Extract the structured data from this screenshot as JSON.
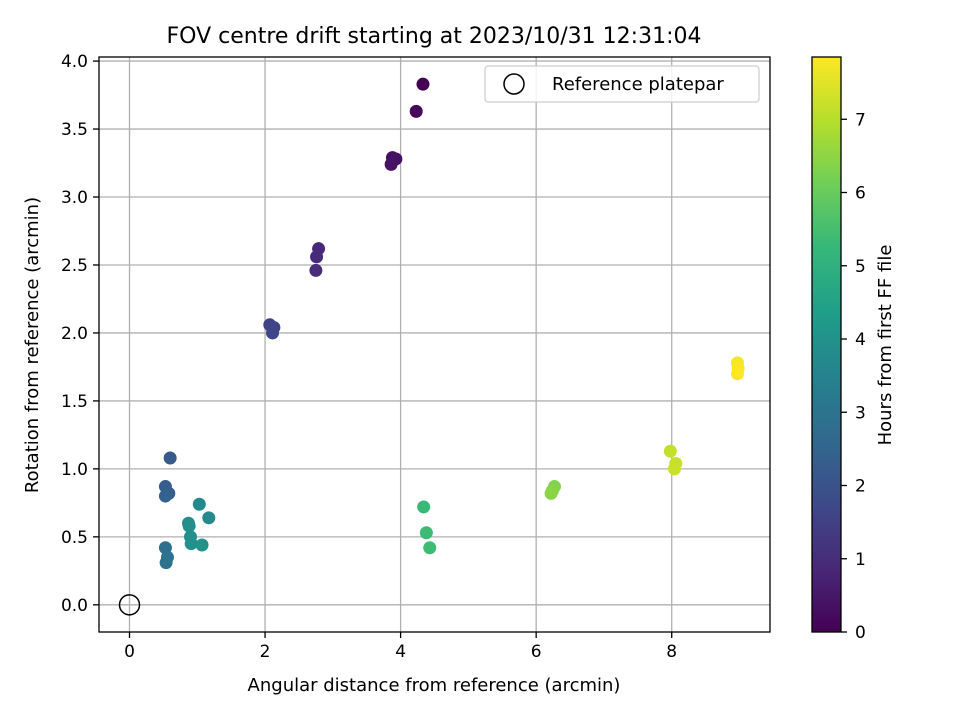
{
  "chart_data": {
    "type": "scatter",
    "title": "FOV centre drift starting at 2023/10/31 12:31:04",
    "xlabel": "Angular distance from reference (arcmin)",
    "ylabel": "Rotation from reference (arcmin)",
    "xlim": [
      -0.45,
      9.45
    ],
    "ylim": [
      -0.2,
      4.03
    ],
    "xticks": [
      0,
      2,
      4,
      6,
      8
    ],
    "yticks": [
      0.0,
      0.5,
      1.0,
      1.5,
      2.0,
      2.5,
      3.0,
      3.5,
      4.0
    ],
    "xtick_labels": [
      "0",
      "2",
      "4",
      "6",
      "8"
    ],
    "ytick_labels": [
      "0.0",
      "0.5",
      "1.0",
      "1.5",
      "2.0",
      "2.5",
      "3.0",
      "3.5",
      "4.0"
    ],
    "grid": true,
    "colormap": "viridis",
    "colorbar": {
      "label": "Hours from first FF file",
      "range": [
        0,
        7.85
      ],
      "ticks": [
        0,
        1,
        2,
        3,
        4,
        5,
        6,
        7
      ],
      "tick_labels": [
        "0",
        "1",
        "2",
        "3",
        "4",
        "5",
        "6",
        "7"
      ]
    },
    "legend": {
      "placement": "top-right",
      "entries": [
        "Reference platepar"
      ]
    },
    "reference_point": {
      "x": 0,
      "y": 0
    },
    "points": [
      {
        "x": 4.33,
        "y": 3.83,
        "c": 0.0
      },
      {
        "x": 4.23,
        "y": 3.63,
        "c": 0.15
      },
      {
        "x": 3.88,
        "y": 3.29,
        "c": 0.3
      },
      {
        "x": 3.93,
        "y": 3.28,
        "c": 0.35
      },
      {
        "x": 3.86,
        "y": 3.24,
        "c": 0.4
      },
      {
        "x": 2.79,
        "y": 2.62,
        "c": 0.9
      },
      {
        "x": 2.76,
        "y": 2.56,
        "c": 0.95
      },
      {
        "x": 2.75,
        "y": 2.46,
        "c": 1.0
      },
      {
        "x": 2.07,
        "y": 2.06,
        "c": 1.55
      },
      {
        "x": 2.13,
        "y": 2.04,
        "c": 1.6
      },
      {
        "x": 2.11,
        "y": 2.0,
        "c": 1.65
      },
      {
        "x": 0.6,
        "y": 1.08,
        "c": 2.2
      },
      {
        "x": 0.53,
        "y": 0.87,
        "c": 2.3
      },
      {
        "x": 0.58,
        "y": 0.82,
        "c": 2.35
      },
      {
        "x": 0.53,
        "y": 0.8,
        "c": 2.4
      },
      {
        "x": 0.53,
        "y": 0.42,
        "c": 2.85
      },
      {
        "x": 0.56,
        "y": 0.35,
        "c": 2.95
      },
      {
        "x": 0.54,
        "y": 0.31,
        "c": 3.0
      },
      {
        "x": 1.03,
        "y": 0.74,
        "c": 3.7
      },
      {
        "x": 1.17,
        "y": 0.64,
        "c": 3.75
      },
      {
        "x": 0.87,
        "y": 0.6,
        "c": 3.8
      },
      {
        "x": 0.88,
        "y": 0.58,
        "c": 3.85
      },
      {
        "x": 0.9,
        "y": 0.5,
        "c": 3.9
      },
      {
        "x": 0.91,
        "y": 0.45,
        "c": 3.95
      },
      {
        "x": 1.07,
        "y": 0.44,
        "c": 4.0
      },
      {
        "x": 4.34,
        "y": 0.72,
        "c": 5.3
      },
      {
        "x": 4.38,
        "y": 0.53,
        "c": 5.35
      },
      {
        "x": 4.43,
        "y": 0.42,
        "c": 5.4
      },
      {
        "x": 6.27,
        "y": 0.87,
        "c": 6.35
      },
      {
        "x": 6.24,
        "y": 0.84,
        "c": 6.4
      },
      {
        "x": 6.22,
        "y": 0.82,
        "c": 6.45
      },
      {
        "x": 7.98,
        "y": 1.13,
        "c": 7.15
      },
      {
        "x": 8.06,
        "y": 1.04,
        "c": 7.2
      },
      {
        "x": 8.04,
        "y": 1.0,
        "c": 7.25
      },
      {
        "x": 8.97,
        "y": 1.78,
        "c": 7.75
      },
      {
        "x": 8.98,
        "y": 1.74,
        "c": 7.8
      },
      {
        "x": 8.97,
        "y": 1.7,
        "c": 7.85
      }
    ]
  }
}
